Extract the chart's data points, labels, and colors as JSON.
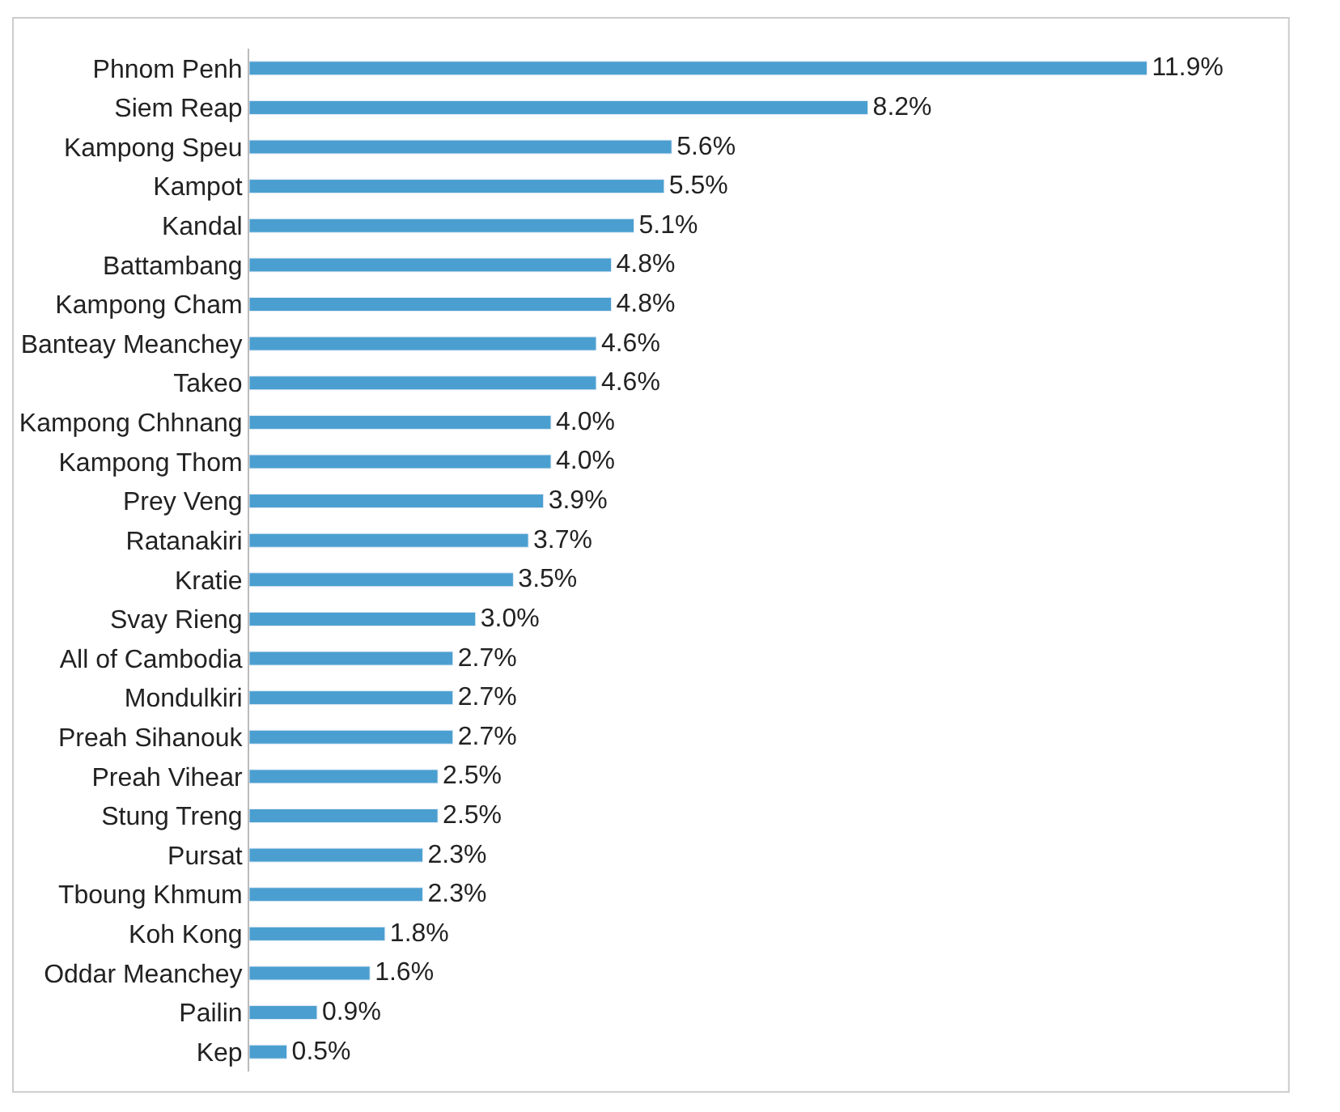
{
  "chart_data": {
    "type": "bar",
    "orientation": "horizontal",
    "categories": [
      "Phnom Penh",
      "Siem Reap",
      "Kampong Speu",
      "Kampot",
      "Kandal",
      "Battambang",
      "Kampong Cham",
      "Banteay Meanchey",
      "Takeo",
      "Kampong Chhnang",
      "Kampong Thom",
      "Prey Veng",
      "Ratanakiri",
      "Kratie",
      "Svay Rieng",
      "All of Cambodia",
      "Mondulkiri",
      "Preah Sihanouk",
      "Preah Vihear",
      "Stung Treng",
      "Pursat",
      "Tboung Khmum",
      "Koh Kong",
      "Oddar Meanchey",
      "Pailin",
      "Kep"
    ],
    "values": [
      11.9,
      8.2,
      5.6,
      5.5,
      5.1,
      4.8,
      4.8,
      4.6,
      4.6,
      4.0,
      4.0,
      3.9,
      3.7,
      3.5,
      3.0,
      2.7,
      2.7,
      2.7,
      2.5,
      2.5,
      2.3,
      2.3,
      1.8,
      1.6,
      0.9,
      0.5
    ],
    "value_labels": [
      "11.9%",
      "8.2%",
      "5.6%",
      "5.5%",
      "5.1%",
      "4.8%",
      "4.8%",
      "4.6%",
      "4.6%",
      "4.0%",
      "4.0%",
      "3.9%",
      "3.7%",
      "3.5%",
      "3.0%",
      "2.7%",
      "2.7%",
      "2.7%",
      "2.5%",
      "2.5%",
      "2.3%",
      "2.3%",
      "1.8%",
      "1.6%",
      "0.9%",
      "0.5%"
    ],
    "color": "#4a9fd0",
    "legend": false
  }
}
